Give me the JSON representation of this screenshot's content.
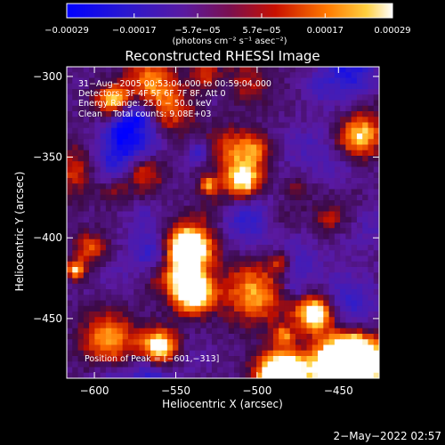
{
  "chart_data": {
    "type": "heatmap",
    "title": "Reconstructed RHESSI Image",
    "xlabel": "Heliocentric X (arcsec)",
    "ylabel": "Heliocentric Y (arcsec)",
    "xlim": [
      -617,
      -425
    ],
    "ylim": [
      -487,
      -294
    ],
    "x_ticks": [
      -600,
      -550,
      -500,
      -450
    ],
    "y_ticks": [
      -300,
      -350,
      -400,
      -450
    ],
    "x_tick_labels": [
      "−600",
      "−550",
      "−500",
      "−450"
    ],
    "y_tick_labels": [
      "−300",
      "−350",
      "−400",
      "−450"
    ],
    "grid": false,
    "colorbar": {
      "min": -0.00029,
      "max": 0.00029,
      "tick_values": [
        -0.00029,
        -0.00017,
        -5.7e-05,
        5.7e-05,
        0.00017,
        0.00029
      ],
      "tick_labels": [
        "−0.00029",
        "−0.00017",
        "−5.7e−05",
        "5.7e−05",
        "0.00017",
        "0.00029"
      ],
      "unit_label": "(photons cm⁻² s⁻¹ asec⁻²)"
    },
    "annotations": [
      "31−Aug−2005 00:53:04.000 to 00:59:04.000",
      "Detectors: 3F 4F 5F 6F 7F 8F, Att 0",
      "Energy Range: 25.0 − 50.0 keV",
      "Clean    Total counts: 9.08E+03"
    ],
    "peak_label": "Position of Peak = [−601,−313]",
    "peak": [
      -601,
      -313
    ],
    "energy_range_kev": [
      25.0,
      50.0
    ],
    "total_counts": 9080
  },
  "footer": {
    "date": "2−May−2022 02:57"
  }
}
